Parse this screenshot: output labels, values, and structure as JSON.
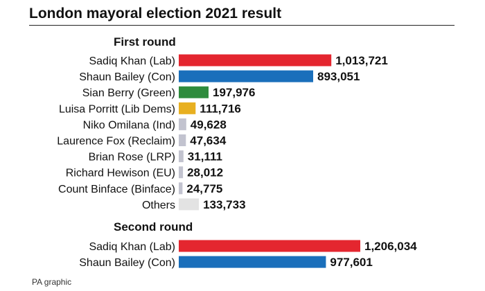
{
  "title": "London mayoral election 2021 result",
  "source": "PA graphic",
  "chart_data": [
    {
      "type": "bar",
      "orientation": "horizontal",
      "title": "First round",
      "categories": [
        "Sadiq Khan (Lab)",
        "Shaun Bailey (Con)",
        "Sian Berry (Green)",
        "Luisa Porritt (Lib Dems)",
        "Niko Omilana (Ind)",
        "Laurence Fox (Reclaim)",
        "Brian Rose (LRP)",
        "Richard Hewison (EU)",
        "Count Binface (Binface)",
        "Others"
      ],
      "values": [
        1013721,
        893051,
        197976,
        111716,
        49628,
        47634,
        31111,
        28012,
        24775,
        133733
      ],
      "value_labels": [
        "1,013,721",
        "893,051",
        "197,976",
        "111,716",
        "49,628",
        "47,634",
        "31,111",
        "28,012",
        "24,775",
        "133,733"
      ],
      "colors": [
        "#e4262f",
        "#1a6fbb",
        "#2e8b3d",
        "#e8b021",
        "#c2c3cf",
        "#c2c3cf",
        "#c2c3cf",
        "#c2c3cf",
        "#c2c3cf",
        "#e3e3e3"
      ],
      "xlim": [
        0,
        1206034
      ]
    },
    {
      "type": "bar",
      "orientation": "horizontal",
      "title": "Second round",
      "categories": [
        "Sadiq Khan (Lab)",
        "Shaun Bailey (Con)"
      ],
      "values": [
        1206034,
        977601
      ],
      "value_labels": [
        "1,206,034",
        "977,601"
      ],
      "colors": [
        "#e4262f",
        "#1a6fbb"
      ],
      "xlim": [
        0,
        1206034
      ]
    }
  ]
}
